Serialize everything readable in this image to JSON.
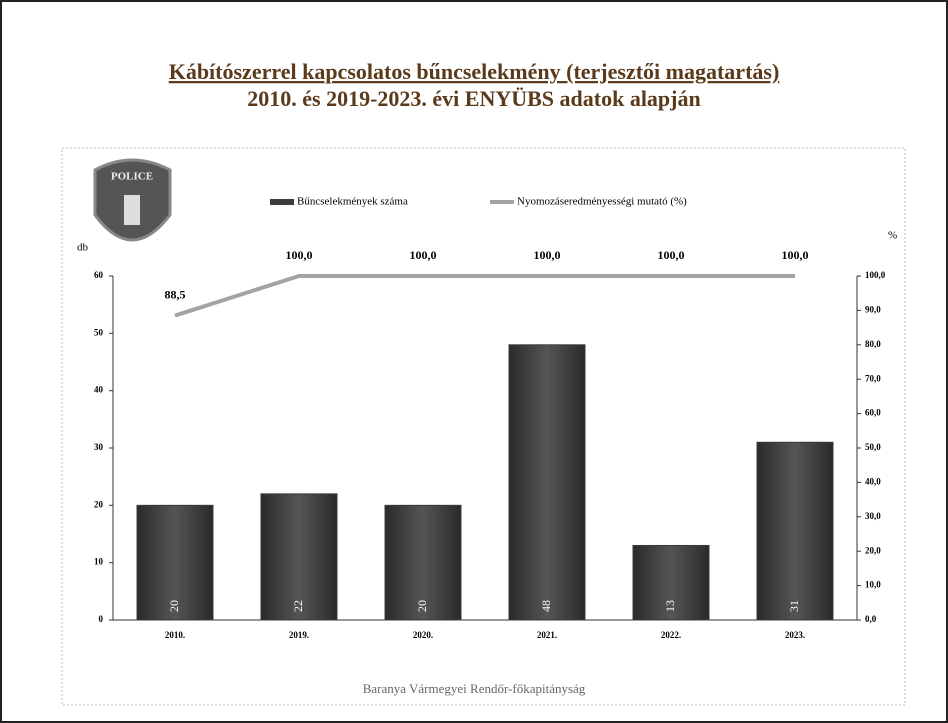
{
  "badge": "POLICE",
  "chart_data": {
    "type": "combo",
    "title": "Kábítószerrel kapcsolatos bűncselekmény (terjesztői magatartás)",
    "subtitle": "2010. és 2019-2023. évi ENYÜBS adatok alapján",
    "footer": "Baranya Vármegyei Rendőr-főkapitányság",
    "y_label": "db",
    "y2_label": "%",
    "categories": [
      "2010.",
      "2019.",
      "2020.",
      "2021.",
      "2022.",
      "2023."
    ],
    "series": [
      {
        "name": "Bűncselekmények száma",
        "type": "bar",
        "color": "#3b3b3b",
        "values": [
          20,
          22,
          20,
          48,
          13,
          31
        ]
      },
      {
        "name": "Nyomozáseredményességi mutató (%)",
        "type": "line",
        "axis": "y2",
        "color": "#a3a3a3",
        "values": [
          88.5,
          100,
          100,
          100,
          100,
          100
        ],
        "value_labels": [
          "88,5",
          "100,0",
          "100,0",
          "100,0",
          "100,0",
          "100,0"
        ]
      }
    ],
    "ylim": [
      0,
      60
    ],
    "yticks": [
      0,
      10,
      20,
      30,
      40,
      50,
      60
    ],
    "y2lim": [
      0,
      100
    ],
    "y2ticks": [
      {
        "value": 0,
        "label": "0,0"
      },
      {
        "value": 10,
        "label": "10,0"
      },
      {
        "value": 20,
        "label": "20,0"
      },
      {
        "value": 30,
        "label": "30,0"
      },
      {
        "value": 40,
        "label": "40,0"
      },
      {
        "value": 50,
        "label": "50,0"
      },
      {
        "value": 60,
        "label": "60,0"
      },
      {
        "value": 70,
        "label": "70,0"
      },
      {
        "value": 80,
        "label": "80,0"
      },
      {
        "value": 90,
        "label": "90,0"
      },
      {
        "value": 100,
        "label": "100,0"
      }
    ]
  }
}
